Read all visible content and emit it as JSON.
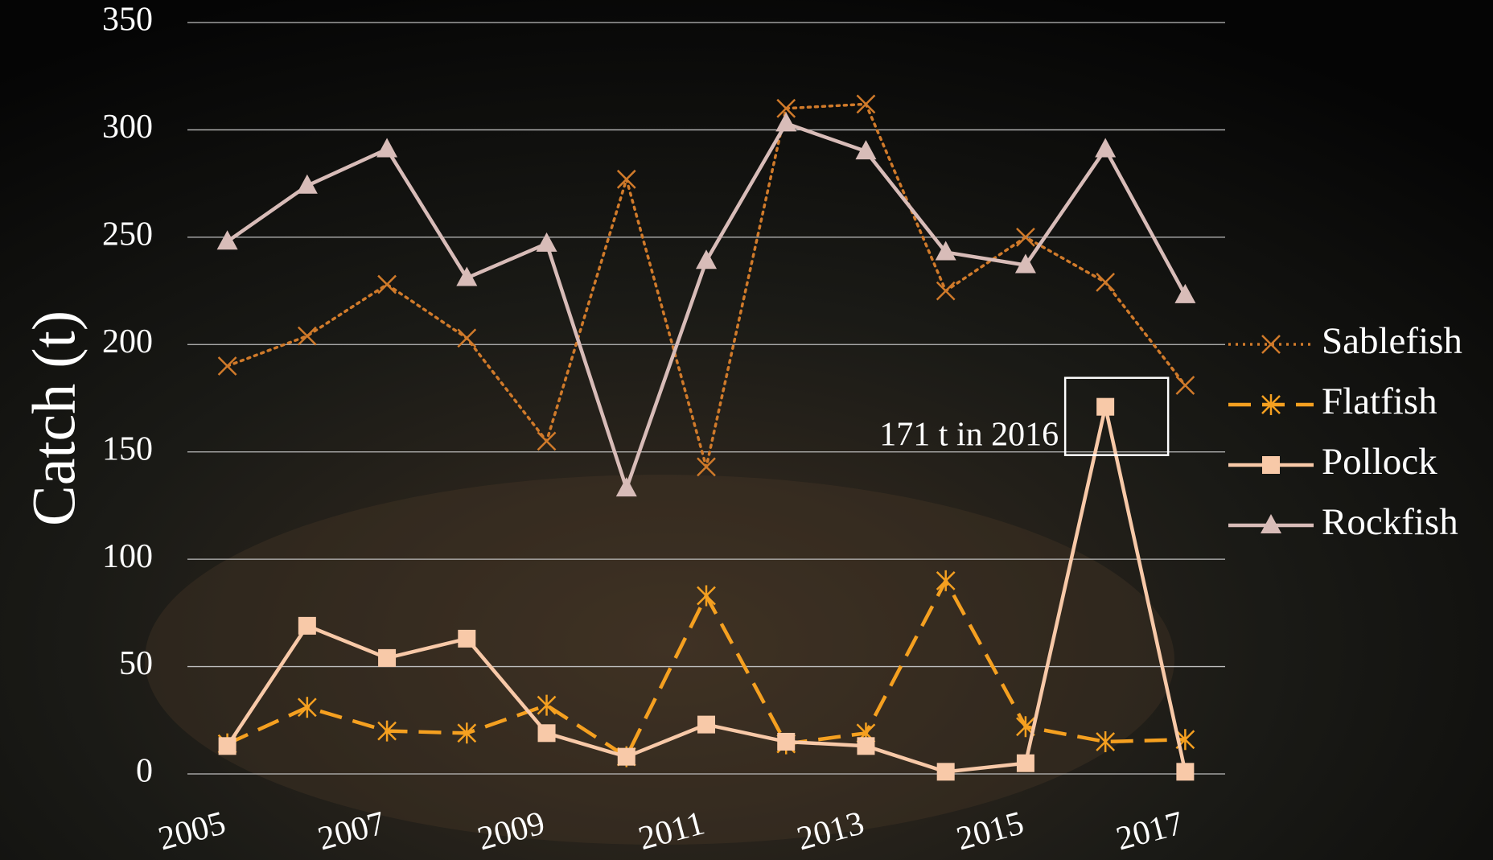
{
  "chart_data": {
    "type": "line",
    "y_label": "Catch (t)",
    "x": [
      2005,
      2006,
      2007,
      2008,
      2009,
      2010,
      2011,
      2012,
      2013,
      2014,
      2015,
      2016,
      2017
    ],
    "xlim": [
      2004.5,
      2017.5
    ],
    "xticks": [
      2005,
      2007,
      2009,
      2011,
      2013,
      2015,
      2017
    ],
    "ylim": [
      0,
      350
    ],
    "yticks": [
      0,
      50,
      100,
      150,
      200,
      250,
      300,
      350
    ],
    "grid": true,
    "legend": "right",
    "series": [
      {
        "name": "Sablefish",
        "color": "#d07a2a",
        "dash": "dotted",
        "marker": "x",
        "values": [
          190,
          204,
          228,
          203,
          155,
          277,
          143,
          310,
          312,
          225,
          250,
          229,
          181
        ]
      },
      {
        "name": "Flatfish",
        "color": "#f5a020",
        "dash": "dashed",
        "marker": "asterisk",
        "values": [
          14,
          31,
          20,
          19,
          32,
          8,
          83,
          14,
          19,
          90,
          22,
          15,
          16
        ]
      },
      {
        "name": "Pollock",
        "color": "#f8c9a8",
        "dash": "solid",
        "marker": "square",
        "values": [
          13,
          69,
          54,
          63,
          19,
          8,
          23,
          15,
          13,
          1,
          5,
          171,
          1
        ]
      },
      {
        "name": "Rockfish",
        "color": "#d8bcb8",
        "dash": "solid",
        "marker": "triangle",
        "values": [
          248,
          274,
          291,
          231,
          247,
          133,
          239,
          303,
          290,
          243,
          237,
          291,
          223
        ]
      }
    ],
    "annotations": [
      {
        "text": "171 t in 2016",
        "x": 2016,
        "y": 171
      }
    ]
  }
}
